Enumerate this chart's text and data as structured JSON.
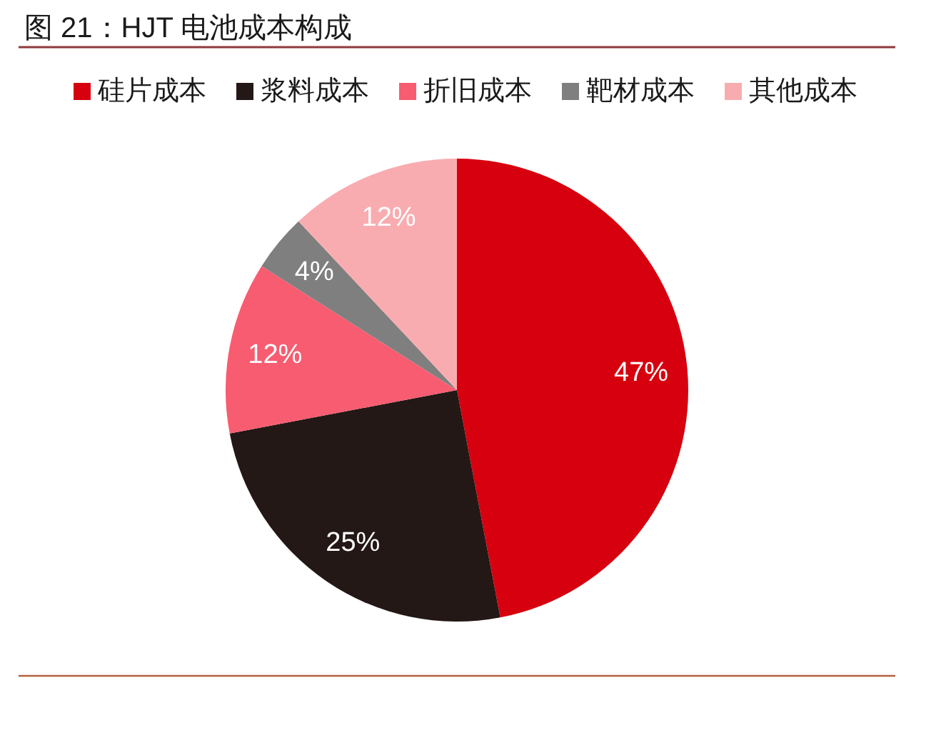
{
  "chart_data": {
    "type": "pie",
    "title": "图 21：HJT 电池成本构成",
    "categories": [
      "硅片成本",
      "浆料成本",
      "折旧成本",
      "靶材成本",
      "其他成本"
    ],
    "values": [
      47,
      25,
      12,
      4,
      12
    ],
    "colors": [
      "#d7000f",
      "#231815",
      "#f85c70",
      "#7f7f7f",
      "#f9acb0"
    ],
    "value_labels": [
      "47%",
      "25%",
      "12%",
      "4%",
      "12%"
    ],
    "legend": "top"
  }
}
